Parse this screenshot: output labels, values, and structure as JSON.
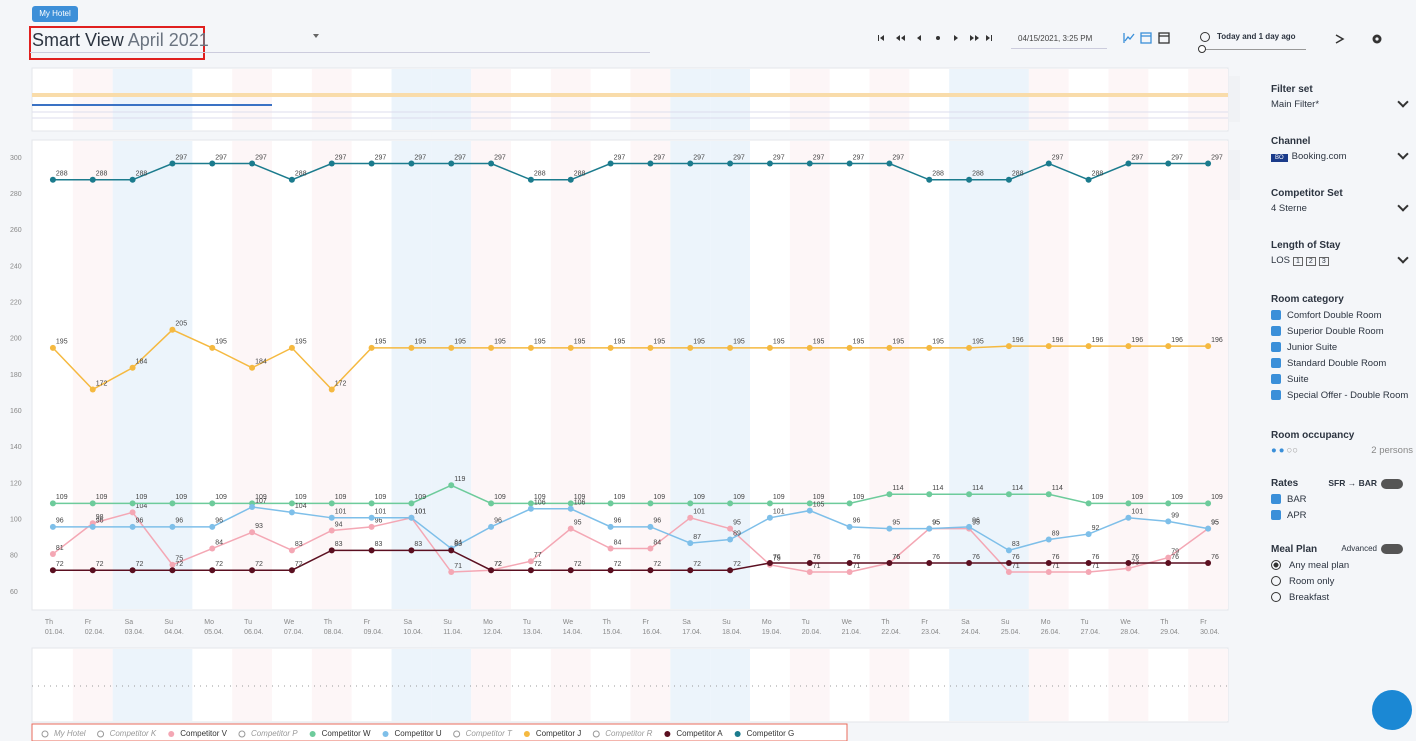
{
  "header": {
    "badge": "My Hotel",
    "title": "Smart View",
    "period": "April 2021",
    "timestamp": "04/15/2021, 3:25 PM",
    "comparison": "Today and 1 day ago"
  },
  "sidebar": {
    "filter_set": {
      "label": "Filter set",
      "value": "Main Filter*"
    },
    "channel": {
      "label": "Channel",
      "logo": "BO",
      "value": "Booking.com"
    },
    "competitor_set": {
      "label": "Competitor Set",
      "value": "4 Sterne"
    },
    "length_of_stay": {
      "label": "Length of Stay",
      "prefix": "LOS",
      "options": [
        "1",
        "2",
        "3"
      ]
    },
    "room_category": {
      "label": "Room category",
      "items": [
        "Comfort Double Room",
        "Superior Double Room",
        "Junior Suite",
        "Standard Double Room",
        "Suite",
        "Special Offer - Double Room"
      ]
    },
    "room_occupancy": {
      "label": "Room occupancy",
      "value": "2 persons"
    },
    "rates": {
      "label": "Rates",
      "toggle": "SFR → BAR",
      "items": [
        "BAR",
        "APR"
      ]
    },
    "meal_plan": {
      "label": "Meal Plan",
      "toggle": "Advanced",
      "options": [
        "Any meal plan",
        "Room only",
        "Breakfast"
      ]
    }
  },
  "chart_data": {
    "type": "line",
    "weekdays": [
      "Th",
      "Fr",
      "Sa",
      "Su",
      "Mo",
      "Tu",
      "We",
      "Th",
      "Fr",
      "Sa",
      "Su",
      "Mo",
      "Tu",
      "We",
      "Th",
      "Fr",
      "Sa",
      "Su",
      "Mo",
      "Tu",
      "We",
      "Th",
      "Fr",
      "Sa",
      "Su",
      "Mo",
      "Tu",
      "We",
      "Th",
      "Fr"
    ],
    "categories": [
      "01.04.",
      "02.04.",
      "03.04.",
      "04.04.",
      "05.04.",
      "06.04.",
      "07.04.",
      "08.04.",
      "09.04.",
      "10.04.",
      "11.04.",
      "12.04.",
      "13.04.",
      "14.04.",
      "15.04.",
      "16.04.",
      "17.04.",
      "18.04.",
      "19.04.",
      "20.04.",
      "21.04.",
      "22.04.",
      "23.04.",
      "24.04.",
      "25.04.",
      "26.04.",
      "27.04.",
      "28.04.",
      "29.04.",
      "30.04."
    ],
    "ylim": [
      50,
      310
    ],
    "yticks": [
      60,
      80,
      100,
      120,
      140,
      160,
      180,
      200,
      220,
      240,
      260,
      280,
      300
    ],
    "series": [
      {
        "name": "My Hotel",
        "hidden": true,
        "values": [
          null,
          null,
          null,
          null,
          null,
          null,
          null,
          null,
          null,
          null,
          null,
          null,
          null,
          null,
          null,
          null,
          null,
          null,
          null,
          null,
          null,
          null,
          null,
          null,
          null,
          null,
          null,
          null,
          null,
          null
        ]
      },
      {
        "name": "Competitor K",
        "hidden": true,
        "values": [
          null,
          null,
          null,
          null,
          null,
          null,
          null,
          null,
          null,
          null,
          null,
          null,
          null,
          null,
          null,
          null,
          null,
          null,
          null,
          null,
          null,
          null,
          null,
          null,
          null,
          null,
          null,
          null,
          null,
          null
        ]
      },
      {
        "name": "Competitor V",
        "color": "#f4a7b4",
        "values": [
          81,
          98,
          104,
          75,
          84,
          93,
          83,
          94,
          96,
          101,
          71,
          72,
          77,
          95,
          84,
          84,
          101,
          95,
          75,
          71,
          71,
          76,
          95,
          95,
          71,
          71,
          71,
          73,
          79,
          95
        ]
      },
      {
        "name": "Competitor P",
        "hidden": true,
        "values": [
          null,
          null,
          null,
          null,
          null,
          null,
          null,
          null,
          null,
          null,
          null,
          null,
          null,
          null,
          null,
          null,
          null,
          null,
          null,
          null,
          null,
          null,
          null,
          null,
          null,
          null,
          null,
          null,
          null,
          null
        ]
      },
      {
        "name": "Competitor W",
        "color": "#6dcb9b",
        "values": [
          109,
          109,
          109,
          109,
          109,
          109,
          109,
          109,
          109,
          109,
          119,
          109,
          109,
          109,
          109,
          109,
          109,
          109,
          109,
          109,
          109,
          114,
          114,
          114,
          114,
          114,
          109,
          109,
          109,
          109
        ]
      },
      {
        "name": "Competitor U",
        "color": "#7ebfe9",
        "values": [
          96,
          96,
          96,
          96,
          96,
          107,
          104,
          101,
          101,
          101,
          84,
          96,
          106,
          106,
          96,
          96,
          87,
          89,
          101,
          105,
          96,
          95,
          95,
          96,
          83,
          89,
          92,
          101,
          99,
          95
        ]
      },
      {
        "name": "Competitor T",
        "hidden": true,
        "values": [
          null,
          null,
          null,
          null,
          null,
          null,
          null,
          null,
          null,
          null,
          null,
          null,
          null,
          null,
          null,
          null,
          null,
          null,
          null,
          null,
          null,
          null,
          null,
          null,
          null,
          null,
          null,
          null,
          null,
          null
        ]
      },
      {
        "name": "Competitor J",
        "color": "#f5b940",
        "values": [
          195,
          172,
          184,
          205,
          195,
          184,
          195,
          172,
          195,
          195,
          195,
          195,
          195,
          195,
          195,
          195,
          195,
          195,
          195,
          195,
          195,
          195,
          195,
          195,
          196,
          196,
          196,
          196,
          196,
          196
        ]
      },
      {
        "name": "Competitor R",
        "hidden": true,
        "values": [
          null,
          null,
          null,
          null,
          null,
          null,
          null,
          null,
          null,
          null,
          null,
          null,
          null,
          null,
          null,
          null,
          null,
          null,
          null,
          null,
          null,
          null,
          null,
          null,
          null,
          null,
          null,
          null,
          null,
          null
        ]
      },
      {
        "name": "Competitor A",
        "color": "#5b0f20",
        "values": [
          72,
          72,
          72,
          72,
          72,
          72,
          72,
          83,
          83,
          83,
          83,
          72,
          72,
          72,
          72,
          72,
          72,
          72,
          76,
          76,
          76,
          76,
          76,
          76,
          76,
          76,
          76,
          76,
          76,
          76
        ]
      },
      {
        "name": "Competitor G",
        "color": "#1b7b8d",
        "values": [
          288,
          288,
          288,
          297,
          297,
          297,
          288,
          297,
          297,
          297,
          297,
          297,
          288,
          288,
          297,
          297,
          297,
          297,
          297,
          297,
          297,
          297,
          288,
          288,
          288,
          297,
          288,
          297,
          297,
          297
        ]
      }
    ]
  }
}
